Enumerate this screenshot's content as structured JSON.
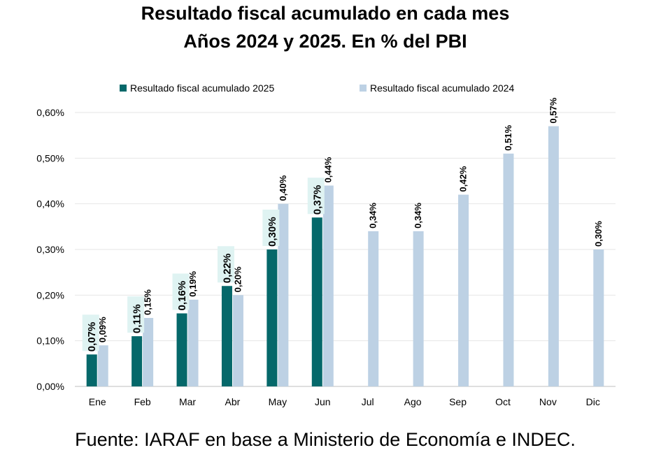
{
  "title_line1": "Resultado fiscal acumulado en cada mes",
  "title_line2": "Años 2024 y 2025. En % del PBI",
  "footer": "Fuente: IARAF en base a Ministerio de Economía e INDEC.",
  "chart_data": {
    "type": "bar",
    "categories": [
      "Ene",
      "Feb",
      "Mar",
      "Abr",
      "May",
      "Jun",
      "Jul",
      "Ago",
      "Sep",
      "Oct",
      "Nov",
      "Dic"
    ],
    "series": [
      {
        "name": "Resultado fiscal acumulado 2025",
        "color": "#05686a",
        "values": [
          0.07,
          0.11,
          0.16,
          0.22,
          0.3,
          0.37,
          null,
          null,
          null,
          null,
          null,
          null
        ],
        "labels": [
          "0,07%",
          "0,11%",
          "0,16%",
          "0,22%",
          "0,30%",
          "0,37%",
          "",
          "",
          "",
          "",
          "",
          ""
        ]
      },
      {
        "name": "Resultado fiscal acumulado 2024",
        "color": "#bdd1e4",
        "values": [
          0.09,
          0.15,
          0.19,
          0.2,
          0.4,
          0.44,
          0.34,
          0.34,
          0.42,
          0.51,
          0.57,
          0.3
        ],
        "labels": [
          "0,09%",
          "0,15%",
          "0,19%",
          "0,20%",
          "0,40%",
          "0,44%",
          "0,34%",
          "0,34%",
          "0,42%",
          "0,51%",
          "0,57%",
          "0,30%"
        ]
      }
    ],
    "y_ticks": [
      "0,00%",
      "0,10%",
      "0,20%",
      "0,30%",
      "0,40%",
      "0,50%",
      "0,60%"
    ],
    "ylim": [
      0,
      0.6
    ],
    "grid": true,
    "legend_position": "top",
    "label_highlight_color": "#dff3f2"
  }
}
